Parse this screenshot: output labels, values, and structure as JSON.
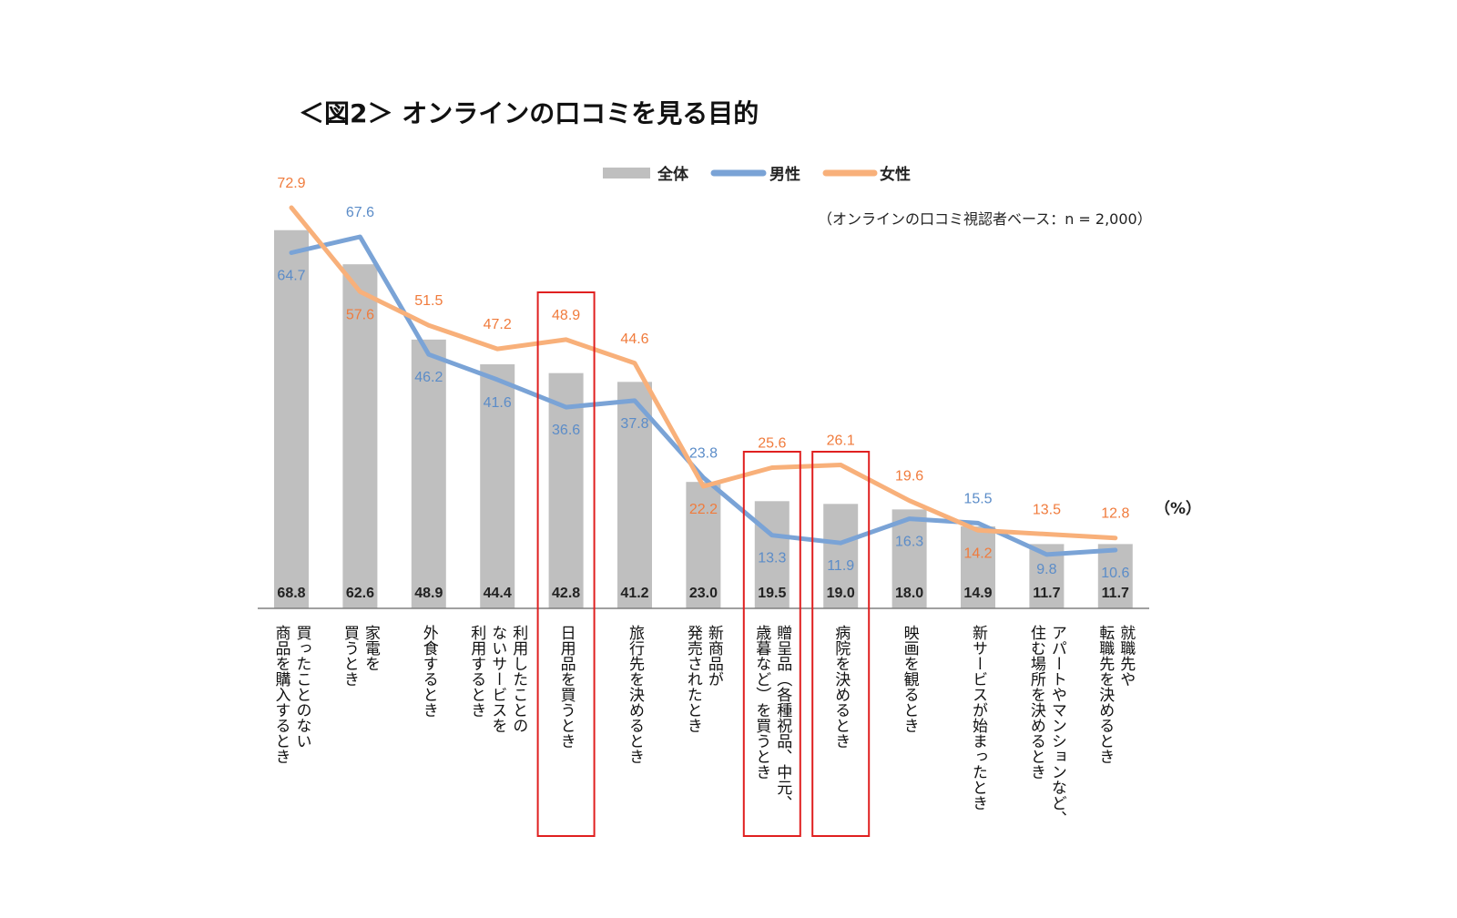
{
  "chart_data": {
    "type": "bar",
    "title": "＜図2＞ オンラインの口コミを見る目的",
    "note": "（オンラインの口コミ視認者ベース：n = 2,000）",
    "unit": "（%）",
    "ylim": [
      0,
      80
    ],
    "categories": [
      [
        "買ったことのない",
        "商品を購入するとき"
      ],
      [
        "家電を",
        "買うとき"
      ],
      [
        "外食するとき"
      ],
      [
        "利用したことの",
        "ないサービスを",
        "利用するとき"
      ],
      [
        "日用品を買うとき"
      ],
      [
        "旅行先を決めるとき"
      ],
      [
        "新商品が",
        "発売されたとき"
      ],
      [
        "贈呈品（各種祝品、中元、",
        "歳暮など）を買うとき"
      ],
      [
        "病院を決めるとき"
      ],
      [
        "映画を観るとき"
      ],
      [
        "新サービスが始まったとき"
      ],
      [
        "アパートやマンションなど、",
        "住む場所を決めるとき"
      ],
      [
        "就職先や",
        "転職先を決めるとき"
      ]
    ],
    "highlighted_indices": [
      4,
      7,
      8
    ],
    "series": [
      {
        "name": "全体",
        "kind": "bar",
        "color": "#bfbfbf",
        "values": [
          68.8,
          62.6,
          48.9,
          44.4,
          42.8,
          41.2,
          23.0,
          19.5,
          19.0,
          18.0,
          14.9,
          11.7,
          11.7
        ]
      },
      {
        "name": "男性",
        "kind": "line",
        "color": "#7aa3d6",
        "values": [
          64.7,
          67.6,
          46.2,
          41.6,
          36.6,
          37.8,
          23.8,
          13.3,
          11.9,
          16.3,
          15.5,
          9.8,
          10.6
        ]
      },
      {
        "name": "女性",
        "kind": "line",
        "color": "#f8b07a",
        "values": [
          72.9,
          57.6,
          51.5,
          47.2,
          48.9,
          44.6,
          22.2,
          25.6,
          26.1,
          19.6,
          14.2,
          13.5,
          12.8
        ]
      }
    ],
    "colors": {
      "highlight": "#e02020",
      "male_label": "#5b8cc8",
      "female_label": "#f07b3c",
      "axis": "#808080"
    }
  }
}
